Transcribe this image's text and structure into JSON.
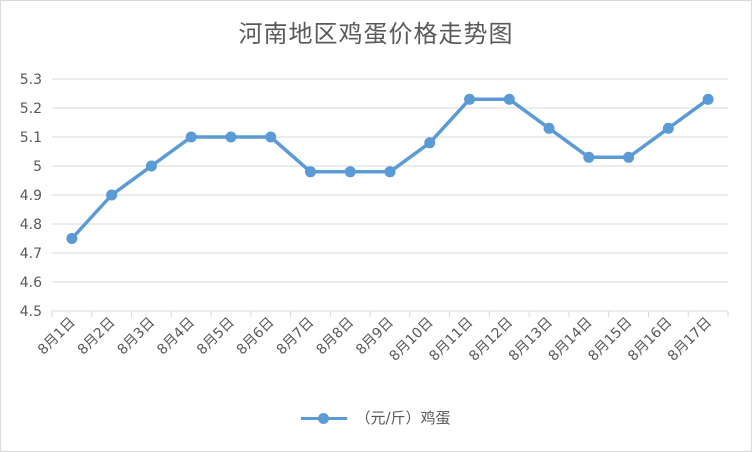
{
  "chart_data": {
    "type": "line",
    "title": "河南地区鸡蛋价格走势图",
    "categories": [
      "8月1日",
      "8月2日",
      "8月3日",
      "8月4日",
      "8月5日",
      "8月6日",
      "8月7日",
      "8月8日",
      "8月9日",
      "8月10日",
      "8月11日",
      "8月12日",
      "8月13日",
      "8月14日",
      "8月15日",
      "8月16日",
      "8月17日"
    ],
    "series": [
      {
        "name": "（元/斤）鸡蛋",
        "values": [
          4.75,
          4.9,
          5.0,
          5.1,
          5.1,
          5.1,
          4.98,
          4.98,
          4.98,
          5.08,
          5.23,
          5.23,
          5.13,
          5.03,
          5.03,
          5.13,
          5.23
        ],
        "color": "#5b9bd5"
      }
    ],
    "yticks": [
      "4.5",
      "4.6",
      "4.7",
      "4.8",
      "4.9",
      "5",
      "5.1",
      "5.2",
      "5.3"
    ],
    "ylim": [
      4.5,
      5.3
    ],
    "xlabel": "",
    "ylabel": "",
    "grid": true,
    "legend_position": "bottom"
  }
}
